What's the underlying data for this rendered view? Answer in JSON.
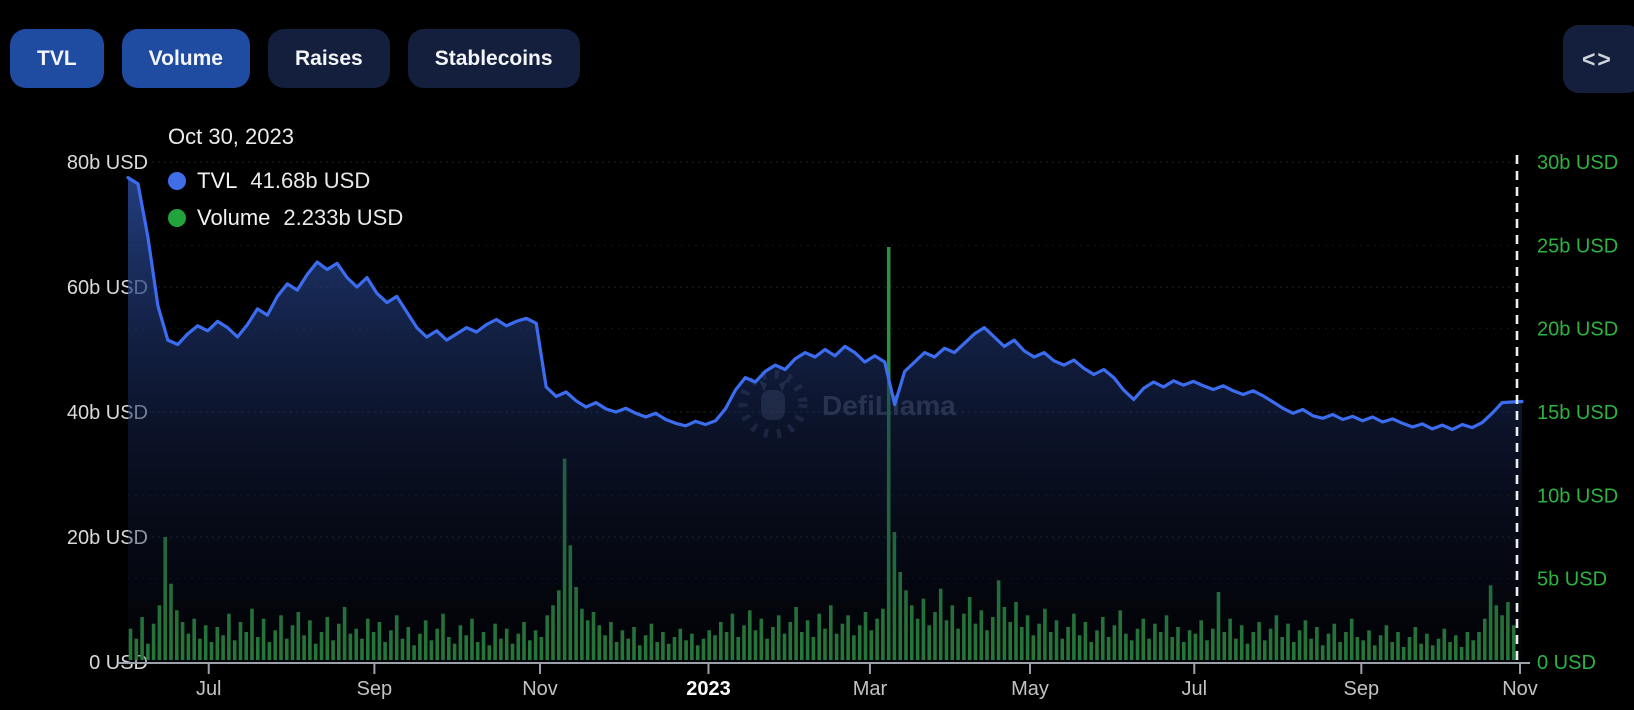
{
  "toolbar": {
    "buttons": [
      {
        "label": "TVL",
        "active": true
      },
      {
        "label": "Volume",
        "active": true
      },
      {
        "label": "Raises",
        "active": false
      },
      {
        "label": "Stablecoins",
        "active": false
      }
    ],
    "code_button_icon": "<>"
  },
  "tooltip": {
    "date": "Oct 30, 2023",
    "series": [
      {
        "name": "TVL",
        "value": "41.68b USD",
        "color": "#3f6ee8"
      },
      {
        "name": "Volume",
        "value": "2.233b USD",
        "color": "#23a33c"
      }
    ]
  },
  "watermark": {
    "text": "DefiLlama"
  },
  "colors": {
    "background": "#000000",
    "tvl_line": "#3c6df0",
    "tvl_fill_top": "#2b4d9e",
    "volume_bar": "#2c9140",
    "right_axis_text": "#2cb342",
    "left_axis_text": "#d9dadc",
    "x_axis_text": "#c2c2c2",
    "x_axis_emphasis": "#ffffff",
    "axis_line": "#9aa1a8",
    "button_active": "#1f4ba0",
    "button_inactive": "#141f3d"
  },
  "chart_data": {
    "type": "mixed",
    "subtype": "tvl-area-line + volume-bars",
    "x_range": [
      "Jun 2022",
      "Oct 30, 2023"
    ],
    "grid": "horizontal-dotted",
    "legend_position": "top-left",
    "cursor": {
      "pos": 1.0,
      "style": "dashed-vertical"
    },
    "x_ticks": [
      {
        "label": "Jul",
        "pos": 0.058
      },
      {
        "label": "Sep",
        "pos": 0.177
      },
      {
        "label": "Nov",
        "pos": 0.296
      },
      {
        "label": "2023",
        "pos": 0.417,
        "bold": true
      },
      {
        "label": "Mar",
        "pos": 0.533
      },
      {
        "label": "May",
        "pos": 0.648
      },
      {
        "label": "Jul",
        "pos": 0.766
      },
      {
        "label": "Sep",
        "pos": 0.886
      },
      {
        "label": "Nov",
        "pos": 1.0
      }
    ],
    "left_axis": {
      "unit": "USD",
      "min": 0,
      "max": 80,
      "ticks": [
        {
          "label": "0 USD",
          "value": 0
        },
        {
          "label": "20b USD",
          "value": 20
        },
        {
          "label": "40b USD",
          "value": 40
        },
        {
          "label": "60b USD",
          "value": 60
        },
        {
          "label": "80b USD",
          "value": 80
        }
      ]
    },
    "right_axis": {
      "unit": "USD",
      "min": 0,
      "max": 30,
      "ticks": [
        {
          "label": "0 USD",
          "value": 0
        },
        {
          "label": "5b USD",
          "value": 5
        },
        {
          "label": "10b USD",
          "value": 10
        },
        {
          "label": "15b USD",
          "value": 15
        },
        {
          "label": "20b USD",
          "value": 20
        },
        {
          "label": "25b USD",
          "value": 25
        },
        {
          "label": "30b USD",
          "value": 30
        }
      ]
    },
    "series": [
      {
        "name": "TVL",
        "type": "area-line",
        "axis": "left",
        "unit": "b USD",
        "color": "#3c6df0",
        "values": [
          77.5,
          76.5,
          68,
          57,
          51.5,
          50.8,
          52.5,
          53.8,
          53,
          54.5,
          53.5,
          52,
          54,
          56.5,
          55.5,
          58.5,
          60.5,
          59.5,
          62,
          64,
          62.8,
          63.8,
          61.5,
          60,
          61.5,
          59,
          57.5,
          58.5,
          56,
          53.5,
          52,
          53,
          51.5,
          52.5,
          53.5,
          52.8,
          54,
          54.8,
          53.8,
          54.5,
          55,
          54.2,
          44,
          42.5,
          43.2,
          41.8,
          40.8,
          41.5,
          40.5,
          40,
          40.6,
          39.8,
          39.2,
          39.8,
          38.8,
          38.2,
          37.8,
          38.5,
          38,
          38.6,
          40.5,
          43.5,
          45.5,
          44.8,
          46.5,
          47.5,
          46.8,
          48.5,
          49.5,
          48.8,
          50,
          49,
          50.5,
          49.5,
          48,
          49,
          48,
          41.2,
          46.5,
          48,
          49.5,
          48.8,
          50.2,
          49.5,
          51,
          52.5,
          53.5,
          52,
          50.5,
          51.5,
          49.8,
          48.8,
          49.5,
          48.2,
          47.5,
          48.3,
          47,
          46,
          46.8,
          45.5,
          43.5,
          42,
          43.8,
          44.8,
          44,
          45,
          44.3,
          44.9,
          44.2,
          43.6,
          44.2,
          43.4,
          42.8,
          43.4,
          42.6,
          41.6,
          40.6,
          39.8,
          40.4,
          39.4,
          39,
          39.6,
          38.8,
          39.3,
          38.6,
          39.2,
          38.4,
          38.9,
          38.2,
          37.6,
          38.1,
          37.3,
          37.9,
          37.2,
          38,
          37.5,
          38.3,
          39.8,
          41.5,
          41.6,
          41.68
        ]
      },
      {
        "name": "Volume",
        "type": "bar",
        "axis": "right",
        "unit": "b USD",
        "color": "#2c9140",
        "values": [
          2,
          1.4,
          2.7,
          1.1,
          2.3,
          3.4,
          7.5,
          4.7,
          3.1,
          2.4,
          1.7,
          2.6,
          1.4,
          2.2,
          1.2,
          2.1,
          1.6,
          2.9,
          1.3,
          2.4,
          1.8,
          3.2,
          1.5,
          2.6,
          1.2,
          1.9,
          2.8,
          1.4,
          2.2,
          3,
          1.6,
          2.5,
          1.1,
          1.8,
          2.7,
          1.3,
          2.3,
          3.3,
          1.7,
          2,
          1.4,
          2.6,
          1.8,
          2.4,
          1.2,
          1.9,
          2.8,
          1.4,
          2.1,
          1,
          1.7,
          2.5,
          1.3,
          2,
          2.9,
          1.5,
          1.1,
          2.2,
          1.6,
          2.6,
          1.2,
          1.8,
          1,
          2.3,
          1.4,
          2,
          1.1,
          1.7,
          2.4,
          1.3,
          1.9,
          1.5,
          2.8,
          3.4,
          4.3,
          12.2,
          7,
          4.5,
          3.2,
          2.5,
          3,
          2.2,
          1.6,
          2.4,
          1.2,
          1.9,
          1.4,
          2.1,
          1,
          1.6,
          2.3,
          1.2,
          1.8,
          1.1,
          1.5,
          2,
          1.3,
          1.7,
          1,
          1.4,
          1.9,
          1.6,
          2.4,
          1.8,
          2.9,
          1.5,
          2.2,
          3.1,
          1.9,
          2.6,
          1.4,
          2.1,
          2.8,
          1.7,
          2.4,
          3.3,
          1.8,
          2.5,
          1.5,
          2.9,
          2,
          3.4,
          1.7,
          2.3,
          2.8,
          1.6,
          2.2,
          3,
          1.9,
          2.6,
          3.2,
          24.9,
          7.8,
          5.4,
          4.3,
          3.4,
          2.6,
          3.8,
          2.2,
          3,
          4.4,
          2.5,
          3.4,
          2,
          2.9,
          3.9,
          2.3,
          3.1,
          1.9,
          2.7,
          4.9,
          3.3,
          2.4,
          3.6,
          2.1,
          2.8,
          1.6,
          2.3,
          3.2,
          1.8,
          2.5,
          1.4,
          2.1,
          2.9,
          1.6,
          2.4,
          1.2,
          1.9,
          2.7,
          1.5,
          2.2,
          3.1,
          1.7,
          1.3,
          2,
          2.6,
          1.4,
          2.3,
          1.8,
          2.8,
          1.5,
          2.1,
          1.2,
          1.9,
          1.7,
          2.5,
          1.3,
          2,
          4.2,
          1.8,
          2.6,
          1.4,
          2.2,
          1.1,
          1.8,
          2.4,
          1.3,
          2,
          2.8,
          1.5,
          2.3,
          1.2,
          1.9,
          2.5,
          1.4,
          2.1,
          1,
          1.7,
          2.3,
          1.2,
          1.8,
          2.6,
          1.5,
          1.3,
          1.9,
          1,
          1.6,
          2.2,
          1.2,
          1.8,
          0.9,
          1.5,
          2.1,
          1.1,
          1.7,
          1,
          1.4,
          2,
          1.2,
          1.6,
          0.9,
          1.8,
          1.3,
          1.8,
          2.6,
          4.6,
          3.4,
          2.8,
          3.6,
          2.2
        ]
      }
    ]
  }
}
